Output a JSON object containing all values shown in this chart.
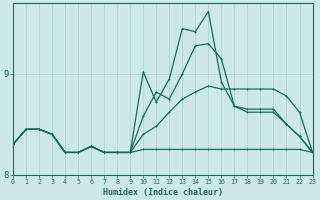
{
  "xlabel": "Humidex (Indice chaleur)",
  "bg_color": "#cce8e8",
  "grid_color": "#aacfcf",
  "line_color": "#1a6b5a",
  "xlim": [
    0,
    23
  ],
  "ylim": [
    8.05,
    9.7
  ],
  "yticks": [
    8,
    9
  ],
  "xticks": [
    0,
    1,
    2,
    3,
    4,
    5,
    6,
    7,
    8,
    9,
    10,
    11,
    12,
    13,
    14,
    15,
    16,
    17,
    18,
    19,
    20,
    21,
    22,
    23
  ],
  "line_volatile_x": [
    0,
    1,
    2,
    3,
    4,
    5,
    6,
    7,
    8,
    9,
    10,
    11,
    12,
    13,
    14,
    15,
    16,
    17,
    18,
    19,
    20,
    21,
    22,
    23
  ],
  "line_volatile_y": [
    8.3,
    8.45,
    8.45,
    8.4,
    8.22,
    8.22,
    8.28,
    8.22,
    8.22,
    8.22,
    9.02,
    8.72,
    8.95,
    9.45,
    9.42,
    9.62,
    8.92,
    8.68,
    8.65,
    8.65,
    8.65,
    8.5,
    8.38,
    8.22
  ],
  "line_mid_x": [
    0,
    1,
    2,
    3,
    4,
    5,
    6,
    7,
    8,
    9,
    10,
    11,
    12,
    13,
    14,
    15,
    16,
    17,
    18,
    19,
    20,
    21,
    22,
    23
  ],
  "line_mid_y": [
    8.3,
    8.45,
    8.45,
    8.4,
    8.22,
    8.22,
    8.28,
    8.22,
    8.22,
    8.22,
    8.58,
    8.82,
    8.75,
    9.0,
    9.28,
    9.3,
    9.15,
    8.68,
    8.62,
    8.62,
    8.62,
    8.5,
    8.38,
    8.22
  ],
  "line_smooth_x": [
    0,
    1,
    2,
    3,
    4,
    5,
    6,
    7,
    8,
    9,
    10,
    11,
    12,
    13,
    14,
    15,
    16,
    17,
    18,
    19,
    20,
    21,
    22,
    23
  ],
  "line_smooth_y": [
    8.3,
    8.45,
    8.45,
    8.4,
    8.22,
    8.22,
    8.28,
    8.22,
    8.22,
    8.22,
    8.4,
    8.48,
    8.62,
    8.75,
    8.82,
    8.88,
    8.85,
    8.85,
    8.85,
    8.85,
    8.85,
    8.78,
    8.62,
    8.22
  ],
  "line_flat_x": [
    0,
    1,
    2,
    3,
    4,
    5,
    6,
    7,
    8,
    9,
    10,
    11,
    12,
    13,
    14,
    15,
    16,
    17,
    18,
    19,
    20,
    21,
    22,
    23
  ],
  "line_flat_y": [
    8.3,
    8.45,
    8.45,
    8.4,
    8.22,
    8.22,
    8.28,
    8.22,
    8.22,
    8.22,
    8.25,
    8.25,
    8.25,
    8.25,
    8.25,
    8.25,
    8.25,
    8.25,
    8.25,
    8.25,
    8.25,
    8.25,
    8.25,
    8.22
  ]
}
